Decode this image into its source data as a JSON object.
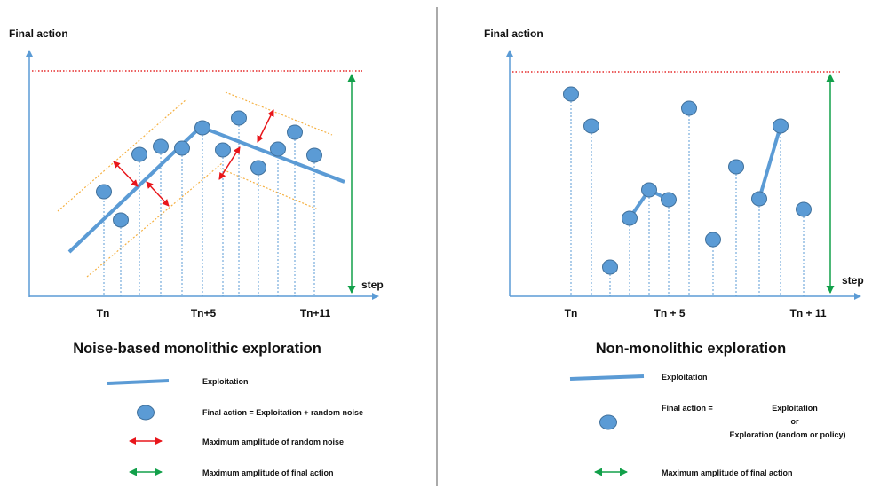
{
  "left": {
    "ylabel": "Final action",
    "xlabel": "step",
    "ticks": [
      "Tn",
      "Tn+5",
      "Tn+11"
    ],
    "title": "Noise-based monolithic exploration",
    "legend": {
      "exploitation": "Exploitation",
      "final_action": "Final action = Exploitation + random noise",
      "noise_amplitude": "Maximum amplitude of random noise",
      "final_amplitude": "Maximum amplitude of final action"
    }
  },
  "right": {
    "ylabel": "Final action",
    "xlabel": "step",
    "ticks": [
      "Tn",
      "Tn + 5",
      "Tn + 11"
    ],
    "title": "Non-monolithic exploration",
    "legend": {
      "exploitation": "Exploitation",
      "final_action_label": "Final action  =",
      "final_action_opt1": "Exploitation",
      "final_action_or": "or",
      "final_action_opt2": "Exploration (random or policy)",
      "final_amplitude": "Maximum amplitude of final action"
    }
  },
  "colors": {
    "axis": "#5b9bd5",
    "point_fill": "#5b9bd5",
    "point_stroke": "#41719c",
    "threshold": "#e00000",
    "noise_band": "#f5b041",
    "noise_arrow": "#e8161b",
    "final_arrow": "#12a04a"
  }
}
